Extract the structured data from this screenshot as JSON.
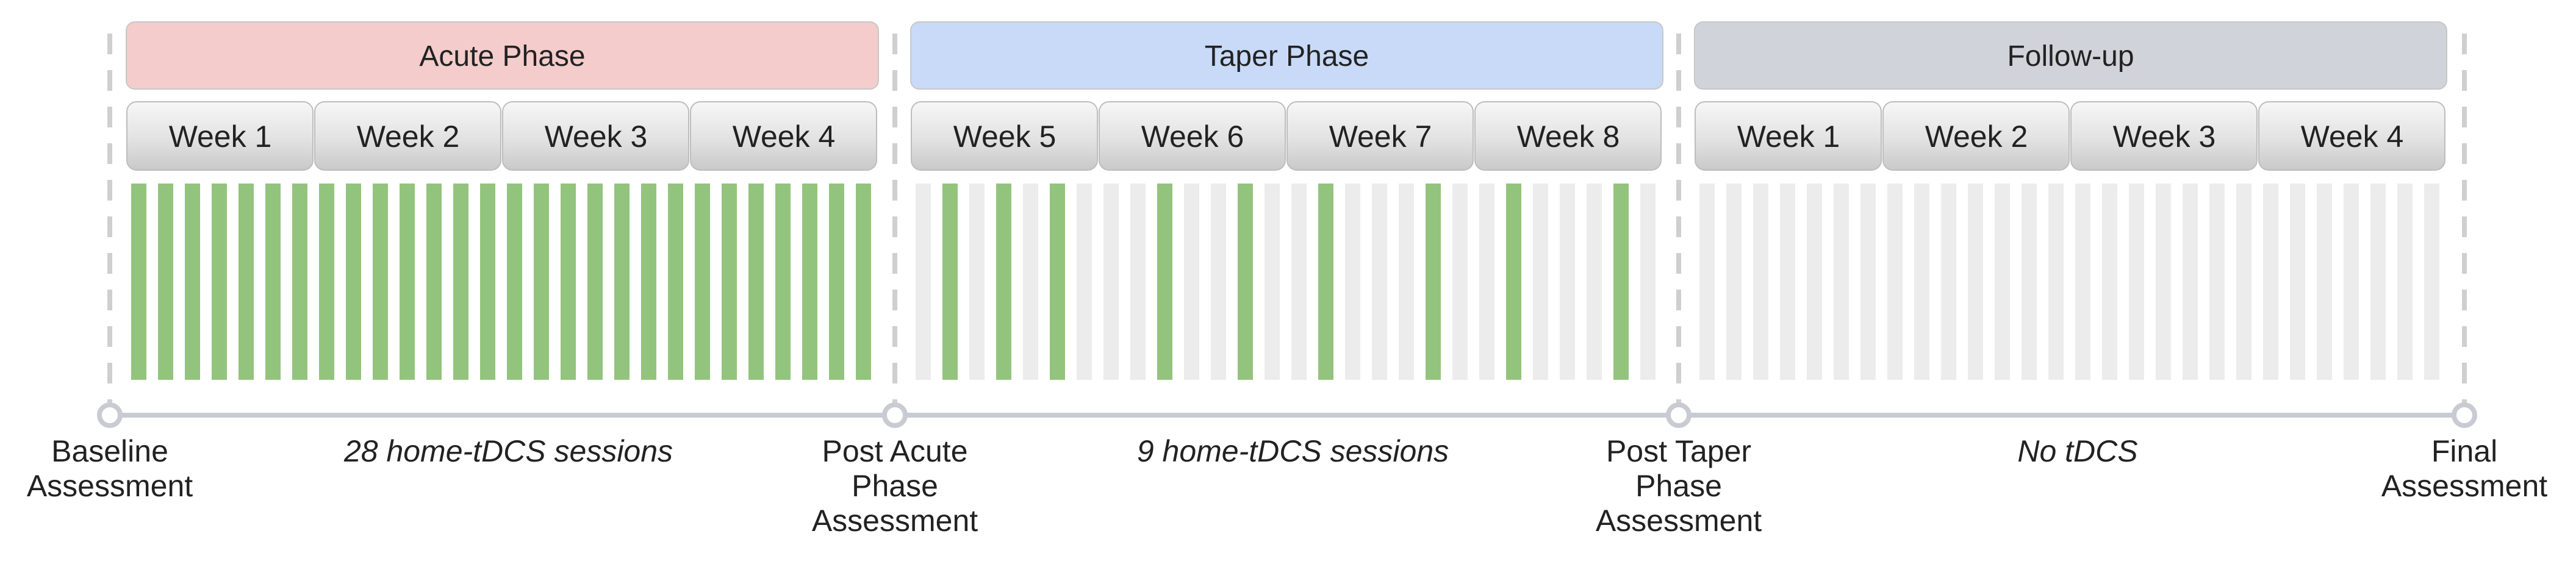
{
  "colors": {
    "acute_phase": "#f4cccc",
    "taper_phase": "#c9daf8",
    "followup_phase": "#d0d3d9",
    "week_box": "#dcdcdc",
    "session_active": "#93c47d",
    "session_inactive": "#ececec",
    "timeline": "#c8ccd2",
    "divider": "#cfcfcf"
  },
  "phases": [
    {
      "label": "Acute Phase",
      "color": "#f4cccc",
      "weeks": [
        "Week 1",
        "Week 2",
        "Week 3",
        "Week 4"
      ],
      "session_pattern": [
        1,
        1,
        1,
        1,
        1,
        1,
        1,
        1,
        1,
        1,
        1,
        1,
        1,
        1,
        1,
        1,
        1,
        1,
        1,
        1,
        1,
        1,
        1,
        1,
        1,
        1,
        1,
        1
      ],
      "sessions_label": "28 home-tDCS sessions"
    },
    {
      "label": "Taper Phase",
      "color": "#c9daf8",
      "weeks": [
        "Week 5",
        "Week 6",
        "Week 7",
        "Week 8"
      ],
      "session_pattern": [
        0,
        1,
        0,
        1,
        0,
        1,
        0,
        0,
        0,
        1,
        0,
        0,
        1,
        0,
        0,
        1,
        0,
        0,
        0,
        1,
        0,
        0,
        1,
        0,
        0,
        0,
        1,
        0
      ],
      "sessions_label": "9 home-tDCS sessions"
    },
    {
      "label": "Follow-up",
      "color": "#d0d3d9",
      "weeks": [
        "Week 1",
        "Week 2",
        "Week 3",
        "Week 4"
      ],
      "session_pattern": [
        0,
        0,
        0,
        0,
        0,
        0,
        0,
        0,
        0,
        0,
        0,
        0,
        0,
        0,
        0,
        0,
        0,
        0,
        0,
        0,
        0,
        0,
        0,
        0,
        0,
        0,
        0,
        0
      ],
      "sessions_label": "No tDCS"
    }
  ],
  "assessments": [
    {
      "lines": [
        "Baseline",
        "Assessment"
      ]
    },
    {
      "lines": [
        "Post Acute",
        "Phase",
        "Assessment"
      ]
    },
    {
      "lines": [
        "Post Taper",
        "Phase",
        "Assessment"
      ]
    },
    {
      "lines": [
        "Final",
        "Assessment"
      ]
    }
  ]
}
